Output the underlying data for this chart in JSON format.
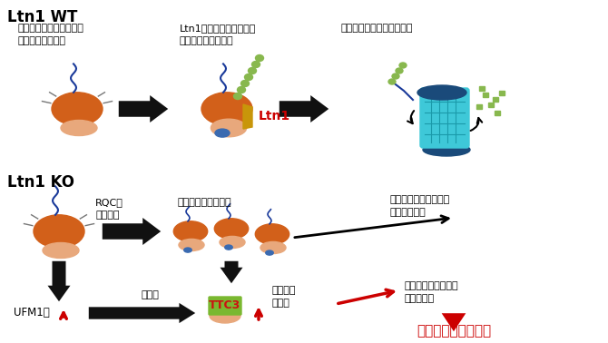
{
  "bg_color": "#ffffff",
  "ltn1_wt_label": "Ltn1 WT",
  "ltn1_ko_label": "Ltn1 KO",
  "text_top1": "翻訳途中の異常によって\nリボソームが停滞",
  "text_top2": "Ltn1によるアレスト産物\nのポリユビキチン化",
  "text_top3": "プロテアソームによる分解",
  "text_ltn1": "Ltn1",
  "text_rqc": "RQCの\n機能不全",
  "text_arrest": "アレスト産物の蓄積",
  "text_ufm1": "UFM1化",
  "text_stable": "安定化",
  "text_ttc3_effect": "翻訳開始\nの阻害",
  "text_further": "さらなるアレスト産物\nの蓄積を抑制",
  "text_neuro": "神経発達・シナプス\n機能の阻害",
  "text_cognitive": "認知障害・発達障害",
  "ribosome_large_color": "#d2601a",
  "ribosome_small_color": "#e8a87c",
  "ubiquitin_color": "#88b84e",
  "proteasome_color": "#3ec8d8",
  "proteasome_cap_color": "#1a4a7a",
  "ttc3_bg_color": "#7ab830",
  "ttc3_text_color": "#cc1111",
  "ltn1_color": "#cc0000",
  "ltn1_body_color": "#c8960a",
  "arrow_black": "#111111",
  "red_color": "#cc0000",
  "blue_rna": "#1a3a9a",
  "blue_detail": "#3a6ab0",
  "figsize": [
    6.7,
    3.78
  ],
  "dpi": 100
}
